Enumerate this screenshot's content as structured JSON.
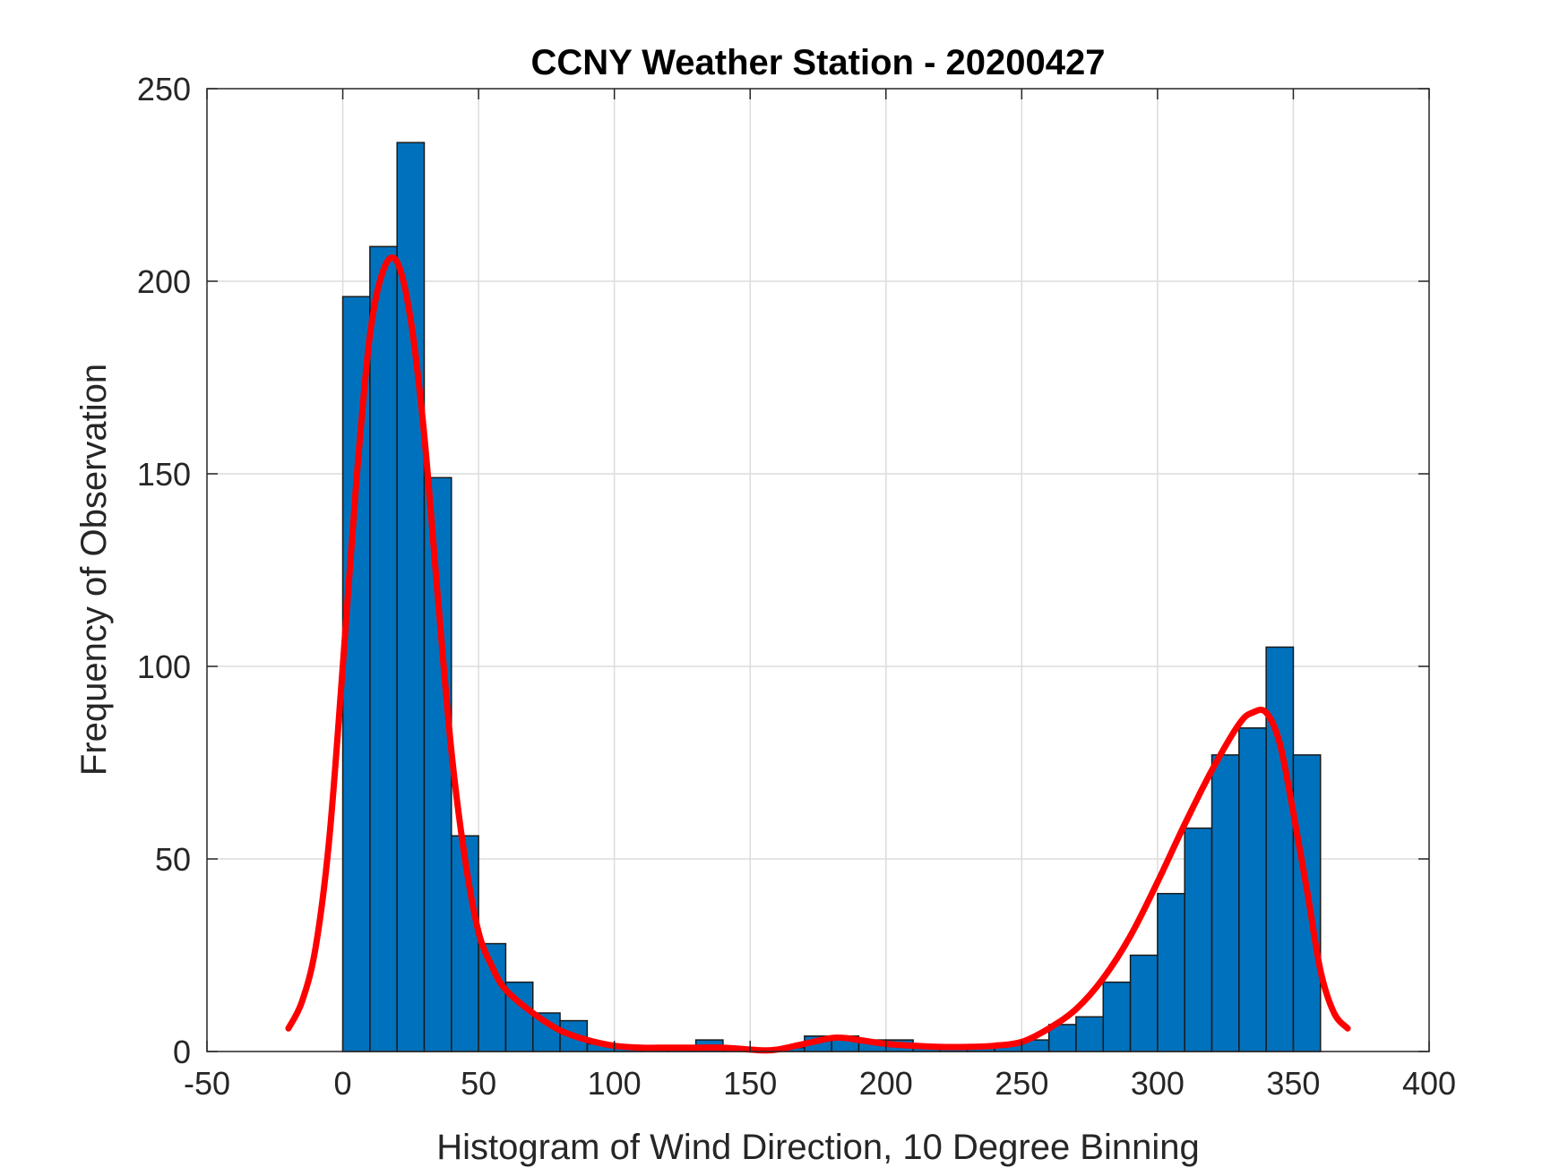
{
  "chart_data": {
    "type": "bar",
    "title": "CCNY Weather Station - 20200427",
    "xlabel": "Histogram of Wind Direction, 10 Degree Binning",
    "ylabel": "Frequency of Observation",
    "xlim": [
      -50,
      400
    ],
    "ylim": [
      0,
      250
    ],
    "xticks": [
      -50,
      0,
      50,
      100,
      150,
      200,
      250,
      300,
      350,
      400
    ],
    "yticks": [
      0,
      50,
      100,
      150,
      200,
      250
    ],
    "grid": true,
    "bin_width": 10,
    "bins": [
      {
        "start": 0,
        "value": 196
      },
      {
        "start": 10,
        "value": 209
      },
      {
        "start": 20,
        "value": 236
      },
      {
        "start": 30,
        "value": 149
      },
      {
        "start": 40,
        "value": 56
      },
      {
        "start": 50,
        "value": 28
      },
      {
        "start": 60,
        "value": 18
      },
      {
        "start": 70,
        "value": 10
      },
      {
        "start": 80,
        "value": 8
      },
      {
        "start": 90,
        "value": 2
      },
      {
        "start": 100,
        "value": 1
      },
      {
        "start": 110,
        "value": 1
      },
      {
        "start": 120,
        "value": 1
      },
      {
        "start": 130,
        "value": 3
      },
      {
        "start": 140,
        "value": 1
      },
      {
        "start": 150,
        "value": 0
      },
      {
        "start": 160,
        "value": 1
      },
      {
        "start": 170,
        "value": 4
      },
      {
        "start": 180,
        "value": 4
      },
      {
        "start": 190,
        "value": 3
      },
      {
        "start": 200,
        "value": 3
      },
      {
        "start": 210,
        "value": 1
      },
      {
        "start": 220,
        "value": 1
      },
      {
        "start": 230,
        "value": 1
      },
      {
        "start": 240,
        "value": 2
      },
      {
        "start": 250,
        "value": 3
      },
      {
        "start": 260,
        "value": 7
      },
      {
        "start": 270,
        "value": 9
      },
      {
        "start": 280,
        "value": 18
      },
      {
        "start": 290,
        "value": 25
      },
      {
        "start": 300,
        "value": 41
      },
      {
        "start": 310,
        "value": 58
      },
      {
        "start": 320,
        "value": 77
      },
      {
        "start": 330,
        "value": 84
      },
      {
        "start": 340,
        "value": 105
      },
      {
        "start": 350,
        "value": 77
      }
    ],
    "fit_curve": {
      "x": [
        -20,
        -15,
        -10,
        -5,
        0,
        5,
        10,
        15,
        20,
        25,
        30,
        35,
        40,
        45,
        50,
        55,
        60,
        70,
        80,
        90,
        100,
        110,
        120,
        130,
        140,
        150,
        155,
        160,
        170,
        180,
        185,
        190,
        200,
        210,
        220,
        230,
        240,
        250,
        260,
        270,
        280,
        290,
        300,
        310,
        320,
        330,
        335,
        340,
        345,
        350,
        355,
        360,
        365,
        370
      ],
      "y": [
        6,
        13,
        27,
        55,
        100,
        148,
        186,
        203,
        205,
        190,
        160,
        118,
        78,
        50,
        31,
        22,
        16,
        10,
        5.5,
        3,
        1.5,
        1,
        1,
        1,
        1,
        0.5,
        0.3,
        0.5,
        2,
        3.5,
        3.5,
        3,
        2,
        1.5,
        1.2,
        1.2,
        1.5,
        2.5,
        6,
        11,
        19,
        30,
        44,
        59,
        73,
        85,
        88,
        88,
        80,
        62,
        42,
        21,
        10,
        6
      ]
    },
    "colors": {
      "bar": "#0072BD",
      "curve": "#FF0000"
    }
  }
}
